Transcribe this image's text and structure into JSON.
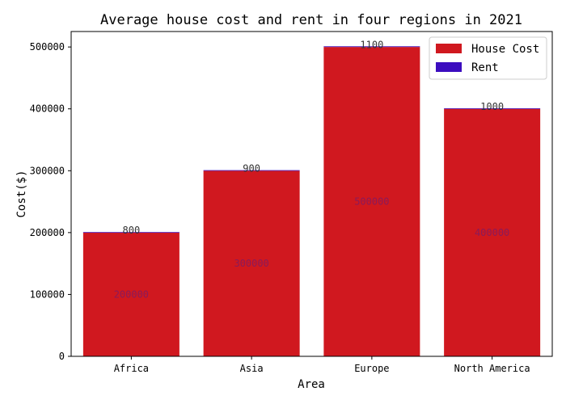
{
  "chart_data": {
    "type": "bar",
    "stacked": true,
    "title": "Average house cost and rent in four regions in 2021",
    "xlabel": "Area",
    "ylabel": "Cost($)",
    "categories": [
      "Africa",
      "Asia",
      "Europe",
      "North America"
    ],
    "series": [
      {
        "name": "House Cost",
        "values": [
          200000,
          300000,
          500000,
          400000
        ],
        "color": "#d0181f"
      },
      {
        "name": "Rent",
        "values": [
          800,
          900,
          1100,
          1000
        ],
        "color": "#3c0dbf"
      }
    ],
    "ylim": [
      0,
      525000
    ],
    "yticks": [
      0,
      100000,
      200000,
      300000,
      400000,
      500000
    ],
    "grid": false,
    "legend": "top-right",
    "house_label_color": "#8b1a5a",
    "rent_label_color": "#333333"
  }
}
